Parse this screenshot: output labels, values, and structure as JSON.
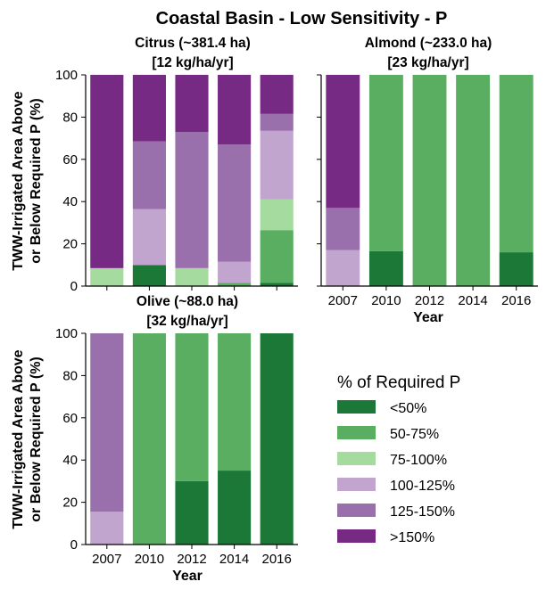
{
  "figure": {
    "title": "Coastal Basin - Low Sensitivity - P"
  },
  "legend": {
    "title": "% of Required P",
    "entries": [
      {
        "label": "<50%",
        "color": "#1b7837"
      },
      {
        "label": "50-75%",
        "color": "#5aae61"
      },
      {
        "label": "75-100%",
        "color": "#a6dba0"
      },
      {
        "label": "100-125%",
        "color": "#c2a5cf"
      },
      {
        "label": "125-150%",
        "color": "#9970ab"
      },
      {
        "label": ">150%",
        "color": "#762a83"
      }
    ]
  },
  "chart_data": [
    {
      "type": "bar",
      "stacked": true,
      "title_line1": "Citrus (~381.4 ha)",
      "title_line2": "[12 kg/ha/yr]",
      "ylabel_line1": "TWW-Irrigated Area Above",
      "ylabel_line2": "or Below Required P (%)",
      "xlabel": "",
      "show_x_ticklabels": false,
      "show_y_ticklabels": true,
      "categories": [
        "2007",
        "2010",
        "2012",
        "2014",
        "2016"
      ],
      "ylim": [
        0,
        100
      ],
      "yticks": [
        "0",
        "20",
        "40",
        "60",
        "80",
        "100"
      ],
      "series": [
        {
          "name": "<50%",
          "values": [
            0,
            10,
            0,
            0,
            1.5
          ]
        },
        {
          "name": "50-75%",
          "values": [
            0,
            0,
            0,
            1.5,
            25
          ]
        },
        {
          "name": "75-100%",
          "values": [
            8.5,
            0,
            8.5,
            0,
            14.5
          ]
        },
        {
          "name": "100-125%",
          "values": [
            0,
            26.5,
            0,
            10,
            32.5
          ]
        },
        {
          "name": "125-150%",
          "values": [
            0,
            32,
            64.5,
            55.5,
            8
          ]
        },
        {
          "name": ">150%",
          "values": [
            91.5,
            31.5,
            27,
            33,
            18.5
          ]
        }
      ]
    },
    {
      "type": "bar",
      "stacked": true,
      "title_line1": "Almond (~233.0 ha)",
      "title_line2": "[23 kg/ha/yr]",
      "ylabel_line1": "",
      "ylabel_line2": "",
      "xlabel": "Year",
      "show_x_ticklabels": true,
      "show_y_ticklabels": false,
      "categories": [
        "2007",
        "2010",
        "2012",
        "2014",
        "2016"
      ],
      "ylim": [
        0,
        100
      ],
      "yticks": [
        "0",
        "20",
        "40",
        "60",
        "80",
        "100"
      ],
      "series": [
        {
          "name": "<50%",
          "values": [
            0,
            16.5,
            0,
            0,
            16
          ]
        },
        {
          "name": "50-75%",
          "values": [
            0,
            83.5,
            100,
            100,
            84
          ]
        },
        {
          "name": "75-100%",
          "values": [
            0,
            0,
            0,
            0,
            0
          ]
        },
        {
          "name": "100-125%",
          "values": [
            17,
            0,
            0,
            0,
            0
          ]
        },
        {
          "name": "125-150%",
          "values": [
            20,
            0,
            0,
            0,
            0
          ]
        },
        {
          "name": ">150%",
          "values": [
            63,
            0,
            0,
            0,
            0
          ]
        }
      ]
    },
    {
      "type": "bar",
      "stacked": true,
      "title_line1": "Olive (~88.0 ha)",
      "title_line2": "[32 kg/ha/yr]",
      "ylabel_line1": "TWW-Irrigated Area Above",
      "ylabel_line2": "or Below Required P (%)",
      "xlabel": "Year",
      "show_x_ticklabels": true,
      "show_y_ticklabels": true,
      "categories": [
        "2007",
        "2010",
        "2012",
        "2014",
        "2016"
      ],
      "ylim": [
        0,
        100
      ],
      "yticks": [
        "0",
        "20",
        "40",
        "60",
        "80",
        "100"
      ],
      "series": [
        {
          "name": "<50%",
          "values": [
            0,
            0,
            30,
            35,
            100
          ]
        },
        {
          "name": "50-75%",
          "values": [
            0,
            100,
            70,
            65,
            0
          ]
        },
        {
          "name": "75-100%",
          "values": [
            0,
            0,
            0,
            0,
            0
          ]
        },
        {
          "name": "100-125%",
          "values": [
            15.5,
            0,
            0,
            0,
            0
          ]
        },
        {
          "name": "125-150%",
          "values": [
            84.5,
            0,
            0,
            0,
            0
          ]
        },
        {
          "name": ">150%",
          "values": [
            0,
            0,
            0,
            0,
            0
          ]
        }
      ]
    }
  ]
}
